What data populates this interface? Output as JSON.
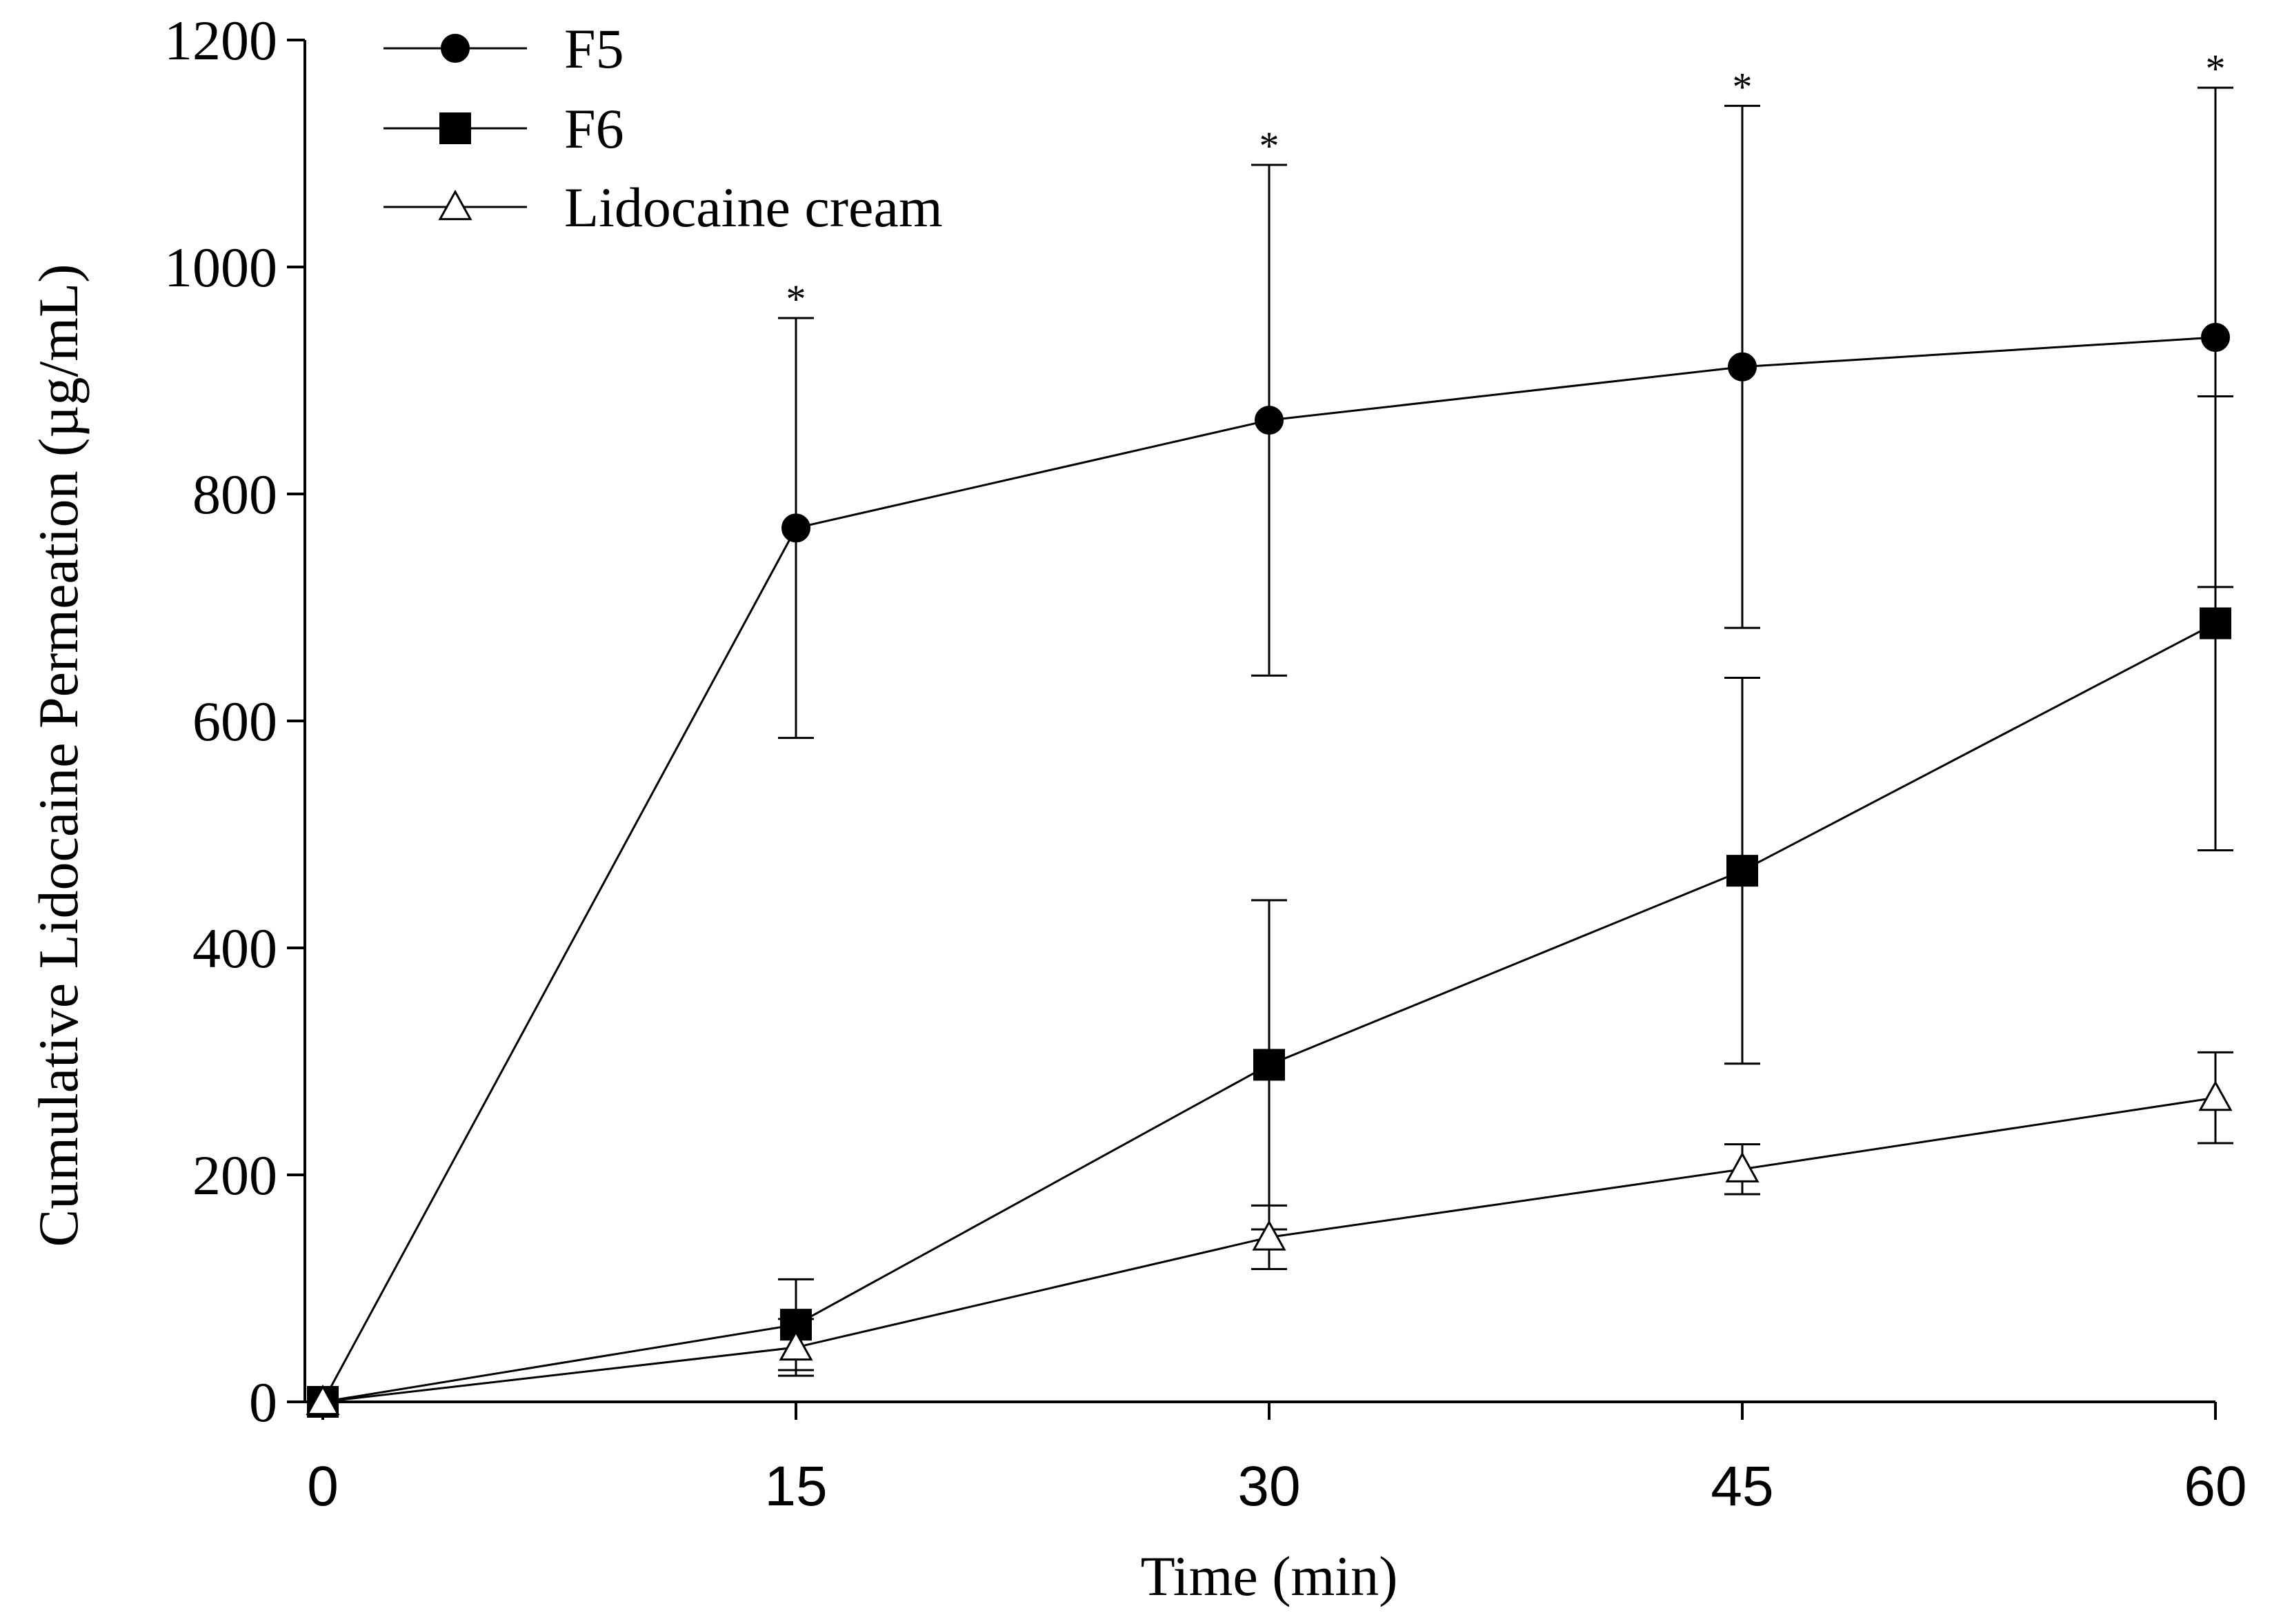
{
  "chart_data": {
    "type": "line",
    "title": "",
    "xlabel": "Time (min)",
    "ylabel": "Cumulative Lidocaine Permeation (µg/mL)",
    "x": [
      0,
      15,
      30,
      45,
      60
    ],
    "xlim": [
      0,
      60
    ],
    "ylim": [
      0,
      1200
    ],
    "x_ticks": [
      "0",
      "15",
      "30",
      "45",
      "60"
    ],
    "y_ticks": [
      "0",
      "200",
      "400",
      "600",
      "800",
      "1000",
      "1200"
    ],
    "grid": false,
    "legend_position": "top-left",
    "series": [
      {
        "name": "F5",
        "marker": "filled-circle",
        "values": [
          0,
          770,
          865,
          912,
          938
        ],
        "errors": [
          0,
          185,
          225,
          230,
          220
        ]
      },
      {
        "name": "F6",
        "marker": "filled-square",
        "values": [
          0,
          68,
          297,
          468,
          686
        ],
        "errors": [
          0,
          40,
          145,
          170,
          200
        ]
      },
      {
        "name": "Lidocaine cream",
        "marker": "open-triangle",
        "values": [
          0,
          48,
          145,
          205,
          268
        ],
        "errors": [
          0,
          25,
          28,
          22,
          40
        ]
      }
    ],
    "annotations": [
      {
        "x": 15,
        "text": "*"
      },
      {
        "x": 30,
        "text": "*"
      },
      {
        "x": 45,
        "text": "*"
      },
      {
        "x": 60,
        "text": "*"
      }
    ]
  }
}
